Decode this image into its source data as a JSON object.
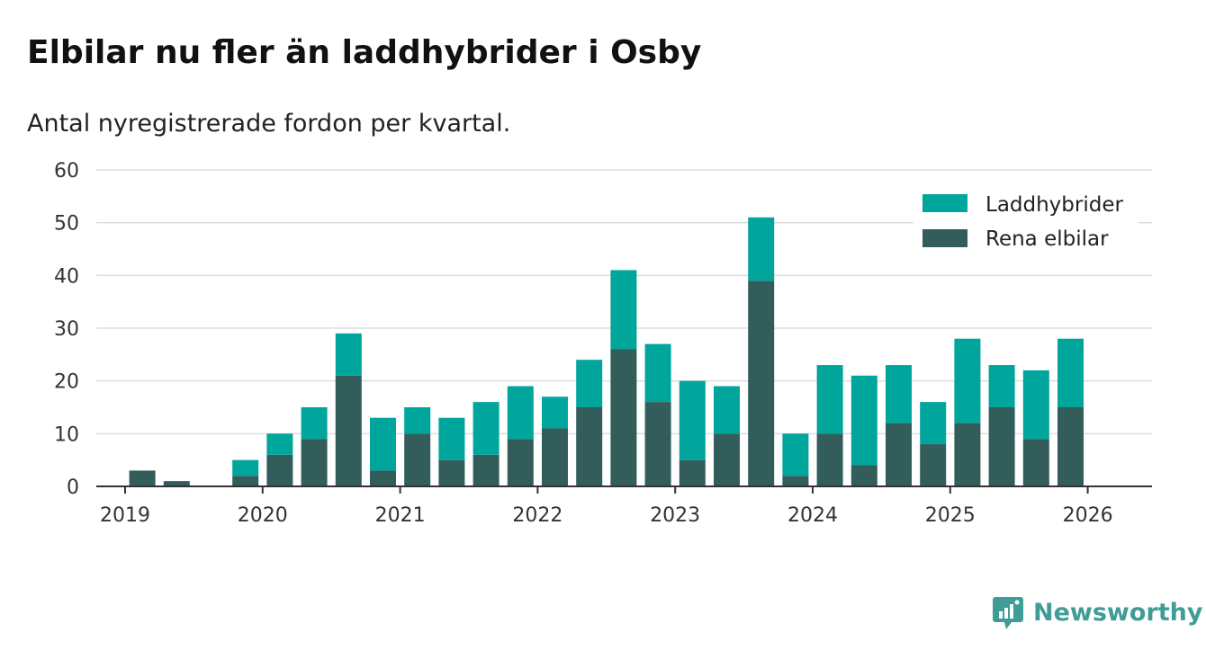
{
  "chart_data": {
    "type": "bar",
    "stacked": true,
    "title": "Elbilar nu fler än laddhybrider i Osby",
    "subtitle": "Antal nyregistrerade fordon per kvartal.",
    "xlabel": "",
    "ylabel": "",
    "ylim": [
      0,
      60
    ],
    "yticks": [
      0,
      10,
      20,
      30,
      40,
      50,
      60
    ],
    "grid": true,
    "legend_position": "top-right",
    "year_labels": [
      "2019",
      "2020",
      "2021",
      "2022",
      "2023",
      "2024",
      "2025",
      "2026"
    ],
    "categories": [
      "2019 Q1",
      "2019 Q2",
      "2019 Q3",
      "2019 Q4",
      "2020 Q1",
      "2020 Q2",
      "2020 Q3",
      "2020 Q4",
      "2021 Q1",
      "2021 Q2",
      "2021 Q3",
      "2021 Q4",
      "2022 Q1",
      "2022 Q2",
      "2022 Q3",
      "2022 Q4",
      "2023 Q1",
      "2023 Q2",
      "2023 Q3",
      "2023 Q4",
      "2024 Q1",
      "2024 Q2",
      "2024 Q3",
      "2024 Q4",
      "2025 Q1",
      "2025 Q2",
      "2025 Q3",
      "2025 Q4"
    ],
    "series": [
      {
        "name": "Rena elbilar",
        "color": "#335d5a",
        "values": [
          3,
          1,
          0,
          2,
          6,
          9,
          21,
          3,
          10,
          5,
          6,
          9,
          11,
          15,
          26,
          16,
          5,
          10,
          39,
          2,
          10,
          4,
          12,
          8,
          12,
          15,
          9,
          15
        ]
      },
      {
        "name": "Laddhybrider",
        "color": "#00a59b",
        "values": [
          0,
          0,
          0,
          3,
          4,
          6,
          8,
          10,
          5,
          8,
          10,
          10,
          6,
          9,
          15,
          11,
          15,
          9,
          12,
          8,
          13,
          17,
          11,
          8,
          16,
          8,
          13,
          13
        ]
      }
    ],
    "legend_order": [
      "Laddhybrider",
      "Rena elbilar"
    ]
  },
  "brand": {
    "name": "Newsworthy",
    "icon": "newsworthy-logo-icon",
    "color": "#3f9c96"
  },
  "colors": {
    "grid": "#dddddd",
    "axis": "#333333",
    "tick_text": "#333333"
  }
}
